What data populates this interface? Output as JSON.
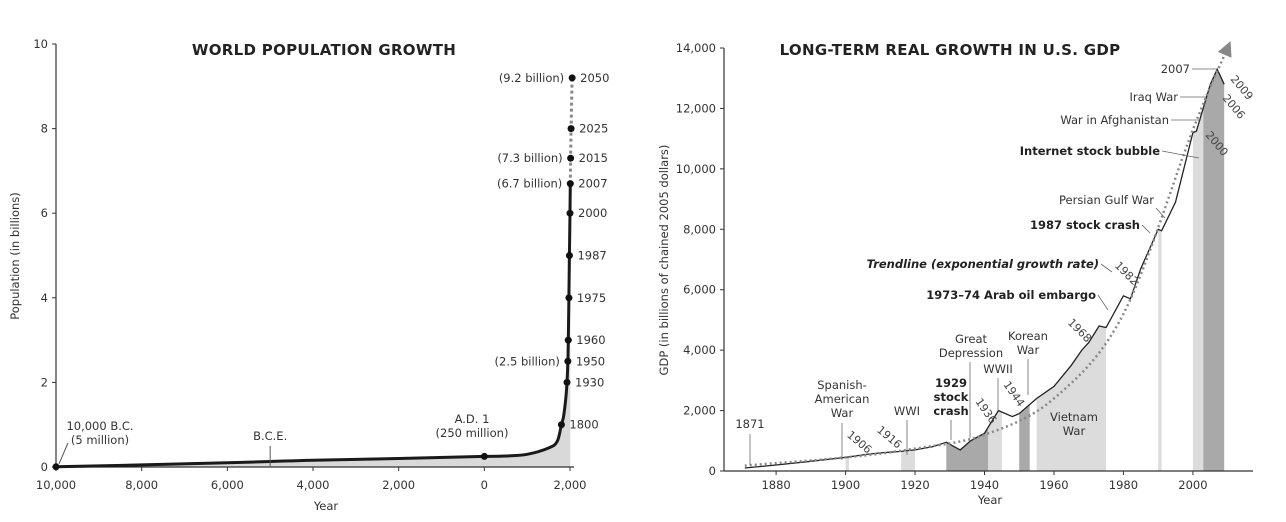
{
  "chart_data": [
    {
      "type": "line",
      "title": "WORLD POPULATION GROWTH",
      "xlabel": "Year",
      "ylabel": "Population (in billions)",
      "xlim": [
        -10000,
        2000
      ],
      "ylim": [
        0,
        10
      ],
      "x_ticks": [
        -10000,
        -8000,
        -6000,
        -4000,
        -2000,
        0,
        2000
      ],
      "x_tick_labels": [
        "10,000",
        "8,000",
        "6,000",
        "4,000",
        "2,000",
        "0",
        "2,000"
      ],
      "y_ticks": [
        0,
        2,
        4,
        6,
        8,
        10
      ],
      "y_tick_labels": [
        "0",
        "2",
        "4",
        "6",
        "8",
        "10"
      ],
      "series": [
        {
          "x": [
            -10000,
            -8000,
            -6000,
            -5000,
            -4000,
            -2000,
            0,
            500,
            1000,
            1500,
            1700,
            1800,
            1850,
            1900,
            1930,
            1950,
            1960,
            1975,
            1987,
            2000,
            2007
          ],
          "y": [
            0.005,
            0.05,
            0.1,
            0.13,
            0.16,
            0.2,
            0.25,
            0.26,
            0.3,
            0.45,
            0.6,
            1.0,
            1.2,
            1.6,
            2.0,
            2.5,
            3.0,
            4.0,
            5.0,
            6.0,
            6.7
          ]
        },
        {
          "style": "dotted",
          "x": [
            2007,
            2015,
            2025,
            2050
          ],
          "y": [
            6.7,
            7.3,
            8.0,
            9.2
          ]
        }
      ],
      "marked_points": [
        {
          "x": 2050,
          "y": 9.2,
          "label": "2050",
          "note": "(9.2 billion)"
        },
        {
          "x": 2025,
          "y": 8.0,
          "label": "2025",
          "note": ""
        },
        {
          "x": 2015,
          "y": 7.3,
          "label": "2015",
          "note": "(7.3 billion)"
        },
        {
          "x": 2007,
          "y": 6.7,
          "label": "2007",
          "note": "(6.7 billion)"
        },
        {
          "x": 2000,
          "y": 6.0,
          "label": "2000",
          "note": ""
        },
        {
          "x": 1987,
          "y": 5.0,
          "label": "1987",
          "note": ""
        },
        {
          "x": 1975,
          "y": 4.0,
          "label": "1975",
          "note": ""
        },
        {
          "x": 1960,
          "y": 3.0,
          "label": "1960",
          "note": ""
        },
        {
          "x": 1950,
          "y": 2.5,
          "label": "1950",
          "note": "(2.5 billion)"
        },
        {
          "x": 1930,
          "y": 2.0,
          "label": "1930",
          "note": ""
        },
        {
          "x": 1800,
          "y": 1.0,
          "label": "1800",
          "note": ""
        }
      ],
      "annotations": [
        {
          "line1": "10,000 B.C.",
          "line2": "(5 million)",
          "x": -10000,
          "y": 0.005
        },
        {
          "line1": "B.C.E.",
          "line2": "",
          "x": -5000,
          "y": 0.13
        },
        {
          "line1": "A.D. 1",
          "line2": "(250 million)",
          "x": 0,
          "y": 0.25
        }
      ]
    },
    {
      "type": "area",
      "title": "LONG-TERM REAL GROWTH IN U.S. GDP",
      "xlabel": "Year",
      "ylabel": "GDP (in billions of chained 2005 dollars)",
      "xlim": [
        1865,
        2015
      ],
      "ylim": [
        0,
        14000
      ],
      "x_ticks": [
        1880,
        1900,
        1920,
        1940,
        1960,
        1980,
        2000
      ],
      "y_ticks": [
        0,
        2000,
        4000,
        6000,
        8000,
        10000,
        12000,
        14000
      ],
      "y_tick_labels": [
        "0",
        "2,000",
        "4,000",
        "6,000",
        "8,000",
        "10,000",
        "12,000",
        "14,000"
      ],
      "series": [
        {
          "name": "GDP",
          "x": [
            1871,
            1880,
            1890,
            1900,
            1906,
            1910,
            1916,
            1918,
            1920,
            1925,
            1929,
            1933,
            1936,
            1940,
            1944,
            1948,
            1950,
            1955,
            1960,
            1965,
            1968,
            1970,
            1973,
            1975,
            1980,
            1982,
            1985,
            1990,
            1991,
            1995,
            2000,
            2001,
            2005,
            2007,
            2009
          ],
          "y": [
            100,
            200,
            320,
            450,
            550,
            600,
            650,
            680,
            700,
            800,
            950,
            700,
            1000,
            1250,
            2000,
            1800,
            1900,
            2400,
            2800,
            3500,
            4000,
            4250,
            4800,
            4750,
            5800,
            5700,
            6700,
            8000,
            7950,
            8900,
            11200,
            11250,
            12800,
            13300,
            12800
          ]
        },
        {
          "name": "Trendline (exponential growth rate)",
          "style": "dotted",
          "x": [
            1871,
            1900,
            1920,
            1940,
            1960,
            1980,
            2000,
            2010
          ],
          "y": [
            180,
            450,
            740,
            1200,
            2400,
            5200,
            11300,
            14000
          ]
        }
      ],
      "shaded_bands": [
        {
          "start": 1900,
          "end": 1901,
          "shade": "light"
        },
        {
          "start": 1916,
          "end": 1920,
          "shade": "light"
        },
        {
          "start": 1929,
          "end": 1941,
          "shade": "dark"
        },
        {
          "start": 1941,
          "end": 1945,
          "shade": "light"
        },
        {
          "start": 1950,
          "end": 1953,
          "shade": "dark"
        },
        {
          "start": 1955,
          "end": 1975,
          "shade": "light"
        },
        {
          "start": 1990,
          "end": 1991,
          "shade": "light"
        },
        {
          "start": 2000,
          "end": 2003,
          "shade": "light"
        },
        {
          "start": 2003,
          "end": 2009,
          "shade": "dark"
        }
      ],
      "annotations": [
        {
          "text": "1871",
          "x": 1871,
          "style": "normal"
        },
        {
          "text": "Spanish-",
          "x": 1898,
          "style": "normal"
        },
        {
          "text": "American",
          "x": 1898,
          "style": "normal"
        },
        {
          "text": "War",
          "x": 1898,
          "style": "normal"
        },
        {
          "text": "WWI",
          "x": 1917,
          "style": "normal"
        },
        {
          "text": "1929",
          "x": 1930,
          "style": "bold"
        },
        {
          "text": "stock",
          "x": 1930,
          "style": "bold"
        },
        {
          "text": "crash",
          "x": 1930,
          "style": "bold"
        },
        {
          "text": "Great",
          "x": 1940,
          "style": "normal"
        },
        {
          "text": "Depression",
          "x": 1940,
          "style": "normal"
        },
        {
          "text": "WWII",
          "x": 1944,
          "style": "normal"
        },
        {
          "text": "Korean",
          "x": 1952,
          "style": "normal"
        },
        {
          "text": "War",
          "x": 1952,
          "style": "normal"
        },
        {
          "text": "Vietnam",
          "x": 1965,
          "style": "normal"
        },
        {
          "text": "War",
          "x": 1965,
          "style": "normal"
        },
        {
          "text": "1973–74 Arab oil embargo",
          "x": 1974,
          "style": "bold"
        },
        {
          "text": "Trendline (exponential growth rate)",
          "x": 1978,
          "style": "bold-italic"
        },
        {
          "text": "1987 stock crash",
          "x": 1987,
          "style": "bold"
        },
        {
          "text": "Persian Gulf War",
          "x": 1991,
          "style": "normal"
        },
        {
          "text": "Internet stock bubble",
          "x": 2000,
          "style": "bold"
        },
        {
          "text": "War in Afghanistan",
          "x": 2001,
          "style": "normal"
        },
        {
          "text": "Iraq War",
          "x": 2003,
          "style": "normal"
        },
        {
          "text": "2007",
          "x": 2007,
          "style": "normal"
        }
      ],
      "rotated_year_labels": [
        "1906",
        "1916",
        "1936",
        "1944",
        "1968",
        "1982",
        "2000",
        "2006",
        "2009"
      ]
    }
  ]
}
